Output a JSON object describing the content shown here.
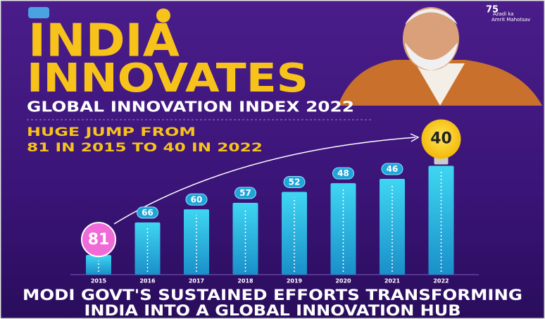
{
  "header": {
    "title_line1": "INDIA",
    "title_line2": "INNOVATES",
    "subtitle": "GLOBAL INNOVATION INDEX  2022",
    "highlight_line1": "HUGE JUMP FROM",
    "highlight_line2": "81 IN 2015 TO 40 IN 2022"
  },
  "logo": {
    "number": "75",
    "line1": "Azadi ka",
    "line2": "Amrit Mahotsav"
  },
  "chart_data": {
    "type": "bar",
    "categories": [
      "2015",
      "2016",
      "2017",
      "2018",
      "2019",
      "2020",
      "2021",
      "2022"
    ],
    "values": [
      81,
      66,
      60,
      57,
      52,
      48,
      46,
      40
    ],
    "color": "#2bc4e6",
    "ylim": [
      90,
      35
    ]
  },
  "footer": {
    "line1": "MODI GOVT'S SUSTAINED EFFORTS TRANSFORMING",
    "line2": "INDIA INTO A GLOBAL INNOVATION HUB"
  }
}
